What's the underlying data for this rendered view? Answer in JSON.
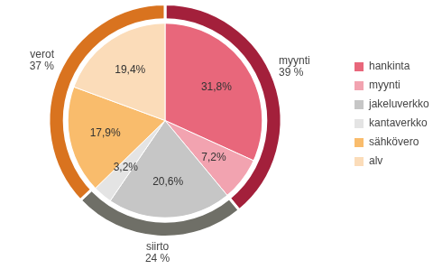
{
  "chart_data": {
    "type": "pie",
    "categories": [
      "hankinta",
      "myynti",
      "jakeluverkko",
      "kantaverkko",
      "sähkövero",
      "alv"
    ],
    "values": [
      31.8,
      7.2,
      20.6,
      3.2,
      17.9,
      19.4
    ],
    "value_labels": [
      "31,8%",
      "7,2%",
      "20,6%",
      "3,2%",
      "17,9%",
      "19,4%"
    ],
    "colors": [
      "#e8677b",
      "#f2a3b0",
      "#c6c6c6",
      "#e4e4e4",
      "#f9bc6c",
      "#fbdcb9"
    ],
    "data_labels": true,
    "legend": "right",
    "groups": {
      "categories": [
        "myynti",
        "siirto",
        "verot"
      ],
      "values": [
        39,
        24,
        37
      ],
      "value_labels": [
        "39 %",
        "24 %",
        "37 %"
      ],
      "colors": [
        "#a3203b",
        "#6f6f67",
        "#d9731f"
      ]
    }
  }
}
